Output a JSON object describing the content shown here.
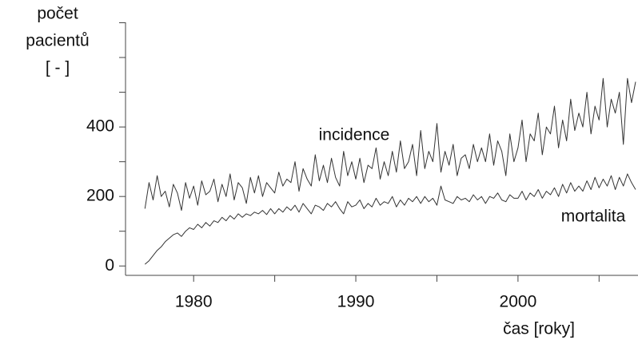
{
  "chart_data": {
    "type": "line",
    "ylabel": [
      "počet",
      "pacientů",
      "[ - ]"
    ],
    "xlabel": "čas [roky]",
    "annotations": [
      "incidence",
      "mortalita"
    ],
    "xlim": [
      1975.8,
      2007.4
    ],
    "xticks": [
      1980,
      1990,
      2000
    ],
    "xminorticks": [
      1985,
      1995,
      2005
    ],
    "ylim": [
      -27,
      731
    ],
    "yticks": [
      0,
      200,
      400
    ],
    "yminorticks": [
      100,
      300,
      500,
      600,
      700
    ],
    "x": [
      1977,
      1977.25,
      1977.5,
      1977.75,
      1978,
      1978.25,
      1978.5,
      1978.75,
      1979,
      1979.25,
      1979.5,
      1979.75,
      1980,
      1980.25,
      1980.5,
      1980.75,
      1981,
      1981.25,
      1981.5,
      1981.75,
      1982,
      1982.25,
      1982.5,
      1982.75,
      1983,
      1983.25,
      1983.5,
      1983.75,
      1984,
      1984.25,
      1984.5,
      1984.75,
      1985,
      1985.25,
      1985.5,
      1985.75,
      1986,
      1986.25,
      1986.5,
      1986.75,
      1987,
      1987.25,
      1987.5,
      1987.75,
      1988,
      1988.25,
      1988.5,
      1988.75,
      1989,
      1989.25,
      1989.5,
      1989.75,
      1990,
      1990.25,
      1990.5,
      1990.75,
      1991,
      1991.25,
      1991.5,
      1991.75,
      1992,
      1992.25,
      1992.5,
      1992.75,
      1993,
      1993.25,
      1993.5,
      1993.75,
      1994,
      1994.25,
      1994.5,
      1994.75,
      1995,
      1995.25,
      1995.5,
      1995.75,
      1996,
      1996.25,
      1996.5,
      1996.75,
      1997,
      1997.25,
      1997.5,
      1997.75,
      1998,
      1998.25,
      1998.5,
      1998.75,
      1999,
      1999.25,
      1999.5,
      1999.75,
      2000,
      2000.25,
      2000.5,
      2000.75,
      2001,
      2001.25,
      2001.5,
      2001.75,
      2002,
      2002.25,
      2002.5,
      2002.75,
      2003,
      2003.25,
      2003.5,
      2003.75,
      2004,
      2004.25,
      2004.5,
      2004.75,
      2005,
      2005.25,
      2005.5,
      2005.75,
      2006,
      2006.25,
      2006.5,
      2006.75,
      2007,
      2007.25
    ],
    "series": [
      {
        "name": "incidence",
        "color": "#333333",
        "values": [
          165,
          240,
          190,
          260,
          200,
          215,
          170,
          235,
          210,
          160,
          240,
          195,
          230,
          175,
          245,
          205,
          215,
          250,
          185,
          235,
          200,
          265,
          190,
          240,
          225,
          180,
          255,
          210,
          260,
          200,
          240,
          225,
          210,
          270,
          230,
          250,
          240,
          300,
          215,
          280,
          250,
          230,
          320,
          245,
          290,
          240,
          310,
          255,
          230,
          330,
          260,
          300,
          250,
          310,
          240,
          290,
          280,
          340,
          250,
          300,
          260,
          330,
          270,
          360,
          280,
          300,
          350,
          260,
          390,
          280,
          330,
          300,
          410,
          270,
          330,
          290,
          350,
          260,
          310,
          320,
          280,
          350,
          300,
          340,
          300,
          380,
          290,
          360,
          330,
          260,
          380,
          300,
          340,
          420,
          300,
          380,
          360,
          440,
          320,
          400,
          380,
          460,
          340,
          420,
          360,
          480,
          390,
          440,
          400,
          500,
          380,
          460,
          420,
          540,
          400,
          480,
          440,
          500,
          350,
          540,
          470,
          530
        ]
      },
      {
        "name": "mortalita",
        "color": "#333333",
        "values": [
          5,
          15,
          30,
          45,
          55,
          70,
          80,
          90,
          95,
          85,
          100,
          110,
          105,
          120,
          110,
          125,
          115,
          130,
          125,
          140,
          130,
          145,
          135,
          150,
          140,
          150,
          145,
          155,
          150,
          160,
          148,
          165,
          150,
          165,
          155,
          170,
          160,
          175,
          155,
          180,
          165,
          150,
          175,
          170,
          160,
          180,
          170,
          185,
          165,
          150,
          185,
          170,
          175,
          190,
          165,
          180,
          170,
          195,
          175,
          185,
          180,
          200,
          170,
          190,
          175,
          195,
          185,
          200,
          180,
          200,
          185,
          195,
          175,
          230,
          190,
          185,
          180,
          200,
          190,
          195,
          185,
          205,
          190,
          200,
          180,
          200,
          195,
          210,
          190,
          185,
          205,
          195,
          195,
          215,
          190,
          210,
          200,
          220,
          195,
          215,
          205,
          225,
          200,
          235,
          210,
          240,
          215,
          230,
          215,
          245,
          220,
          255,
          225,
          250,
          230,
          260,
          220,
          255,
          230,
          265,
          240,
          220
        ]
      }
    ]
  }
}
